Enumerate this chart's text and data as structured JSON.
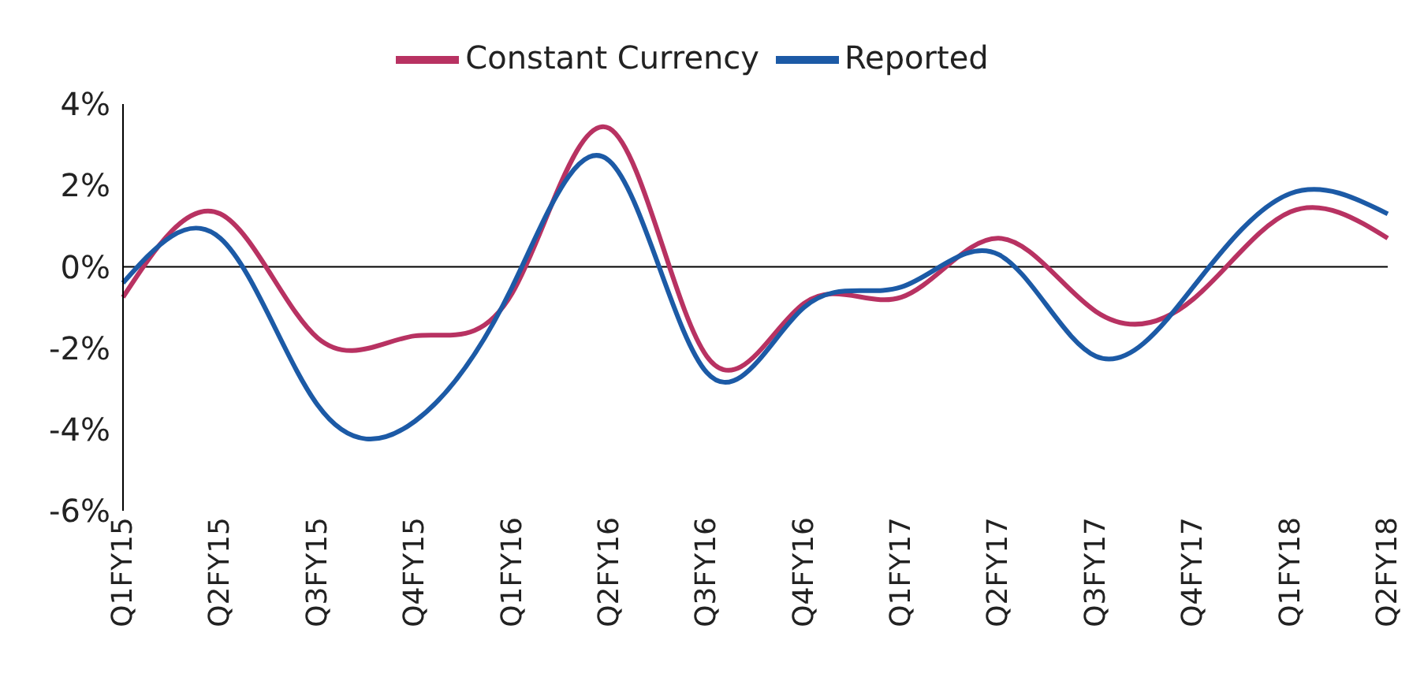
{
  "chart_data": {
    "type": "line",
    "categories": [
      "Q1FY15",
      "Q2FY15",
      "Q3FY15",
      "Q4FY15",
      "Q1FY16",
      "Q2FY16",
      "Q3FY16",
      "Q4FY16",
      "Q1FY17",
      "Q2FY17",
      "Q3FY17",
      "Q4FY17",
      "Q1FY18",
      "Q2FY18"
    ],
    "series": [
      {
        "name": "Constant Currency",
        "color": "#b83262",
        "values": [
          -0.75,
          1.3,
          -1.75,
          -1.7,
          -0.65,
          3.4,
          -2.2,
          -0.9,
          -0.75,
          0.7,
          -1.1,
          -0.8,
          1.35,
          0.7
        ]
      },
      {
        "name": "Reported",
        "color": "#1c5aa6",
        "values": [
          -0.4,
          0.7,
          -3.4,
          -3.8,
          -0.5,
          2.6,
          -2.6,
          -1.0,
          -0.5,
          0.3,
          -2.2,
          -0.5,
          1.8,
          1.3
        ]
      }
    ],
    "ylim": [
      -6,
      4
    ],
    "yticks": [
      {
        "value": -6,
        "label": "-6%"
      },
      {
        "value": -4,
        "label": "-4%"
      },
      {
        "value": -2,
        "label": "-2%"
      },
      {
        "value": 0,
        "label": "0%"
      },
      {
        "value": 2,
        "label": "2%"
      },
      {
        "value": 4,
        "label": "4%"
      }
    ],
    "ref_lines": [
      {
        "axis": "y",
        "value": 0,
        "color": "#000000"
      }
    ],
    "legend": "top",
    "marker": "none",
    "line_style": "solid"
  }
}
